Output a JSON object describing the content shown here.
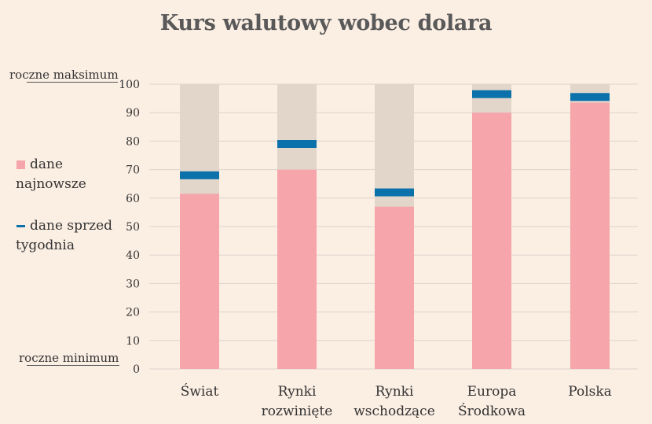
{
  "title": "Kurs walutowy wobec dolara",
  "labels": {
    "max": "roczne maksimum",
    "min": "roczne minimum"
  },
  "legend": {
    "latest_line1": "dane",
    "latest_line2": "najnowsze",
    "week_ago_line1": "dane sprzed",
    "week_ago_line2": "tygodnia"
  },
  "colors": {
    "background": "#fbeee3",
    "range_bar": "#e2d6cb",
    "latest": "#f6a5ab",
    "week_ago": "#0a71aa",
    "grid": "#dcd4cc"
  },
  "chart_data": {
    "type": "bar",
    "title": "Kurs walutowy wobec dolara",
    "categories": [
      [
        "Świat"
      ],
      [
        "Rynki",
        "rozwinięte"
      ],
      [
        "Rynki",
        "wschodzące"
      ],
      [
        "Europa",
        "Środkowa"
      ],
      [
        "Polska"
      ]
    ],
    "ylim": [
      0,
      100
    ],
    "yticks": [
      0,
      10,
      20,
      30,
      40,
      50,
      60,
      70,
      80,
      90,
      100
    ],
    "grid": true,
    "series": [
      {
        "name": "dane najnowsze",
        "values": [
          61.5,
          70,
          57,
          90,
          93.5
        ]
      },
      {
        "name": "dane sprzed tygodnia",
        "values": [
          68,
          79,
          62,
          96.5,
          95.5
        ]
      }
    ]
  }
}
